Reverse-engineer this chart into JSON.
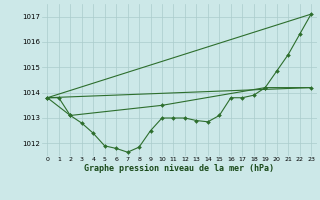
{
  "xlabel": "Graphe pression niveau de la mer (hPa)",
  "background_color": "#cce8e8",
  "grid_color": "#aacccc",
  "line_color": "#2d6e2d",
  "ylim": [
    1011.5,
    1017.5
  ],
  "yticks": [
    1012,
    1013,
    1014,
    1015,
    1016,
    1017
  ],
  "xticks": [
    0,
    1,
    2,
    3,
    4,
    5,
    6,
    7,
    8,
    9,
    10,
    11,
    12,
    13,
    14,
    15,
    16,
    17,
    18,
    19,
    20,
    21,
    22,
    23
  ],
  "series_data": [
    {
      "x": [
        0,
        1,
        2,
        3,
        4,
        5,
        6,
        7,
        8,
        9,
        10,
        11,
        12,
        13,
        14,
        15,
        16,
        17,
        18,
        19,
        20,
        21,
        22,
        23
      ],
      "y": [
        1013.8,
        1013.8,
        1013.1,
        1012.8,
        1012.4,
        1011.9,
        1011.8,
        1011.65,
        1011.85,
        1012.5,
        1013.0,
        1013.0,
        1013.0,
        1012.9,
        1012.85,
        1013.1,
        1013.8,
        1013.8,
        1013.9,
        1014.2,
        1014.85,
        1015.5,
        1016.3,
        1017.1
      ],
      "marker": true
    },
    {
      "x": [
        0,
        23
      ],
      "y": [
        1013.8,
        1017.1
      ],
      "marker": false
    },
    {
      "x": [
        0,
        2,
        10,
        19,
        23
      ],
      "y": [
        1013.8,
        1013.1,
        1013.5,
        1014.2,
        1014.2
      ],
      "marker": true
    },
    {
      "x": [
        0,
        23
      ],
      "y": [
        1013.8,
        1014.2
      ],
      "marker": false
    }
  ],
  "figwidth": 3.2,
  "figheight": 2.0,
  "dpi": 100
}
